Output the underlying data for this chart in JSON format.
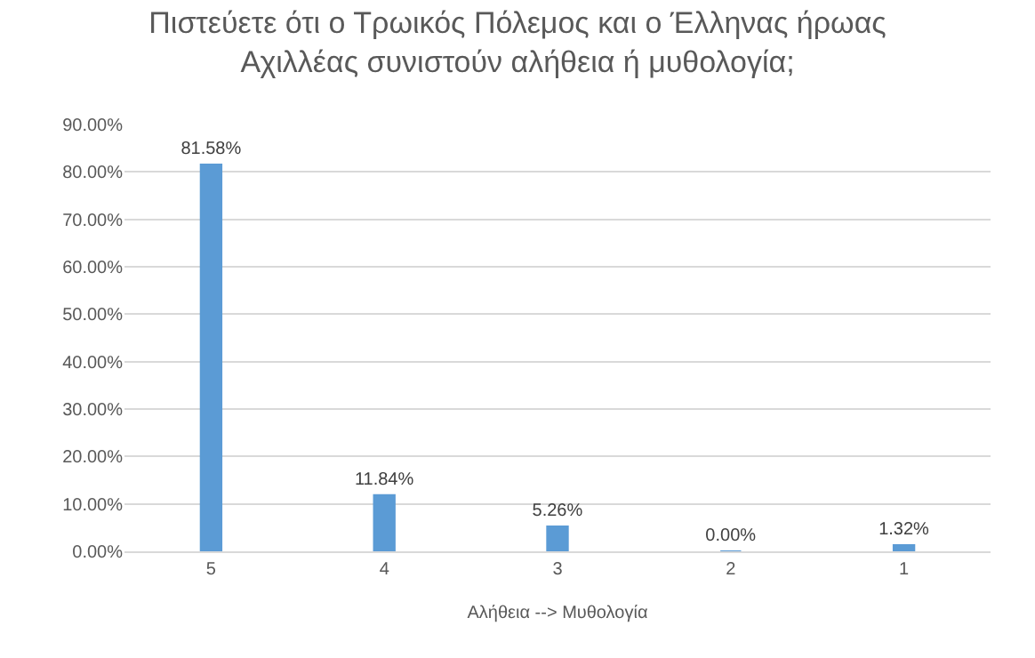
{
  "chart_data": {
    "type": "bar",
    "title": "Πιστεύετε ότι ο Τρωικός Πόλεμος και ο Έλληνας ήρωας\nΑχιλλέας συνιστούν αλήθεια ή μυθολογία;",
    "xlabel": "Αλήθεια --> Μυθολογία",
    "categories": [
      "5",
      "4",
      "3",
      "2",
      "1"
    ],
    "values": [
      81.58,
      11.84,
      5.26,
      0,
      1.32
    ],
    "value_labels": [
      "81.58%",
      "11.84%",
      "5.26%",
      "0.00%",
      "1.32%"
    ],
    "color": "#5b9bd5",
    "ylim": [
      0,
      90
    ],
    "yticks": [
      {
        "value": 0,
        "label": "0.00%"
      },
      {
        "value": 10,
        "label": "10.00%"
      },
      {
        "value": 20,
        "label": "20.00%"
      },
      {
        "value": 30,
        "label": "30.00%"
      },
      {
        "value": 40,
        "label": "40.00%"
      },
      {
        "value": 50,
        "label": "50.00%"
      },
      {
        "value": 60,
        "label": "60.00%"
      },
      {
        "value": 70,
        "label": "70.00%"
      },
      {
        "value": 80,
        "label": "80.00%"
      },
      {
        "value": 90,
        "label": "90.00%"
      }
    ],
    "grid": "y",
    "legend": false
  }
}
